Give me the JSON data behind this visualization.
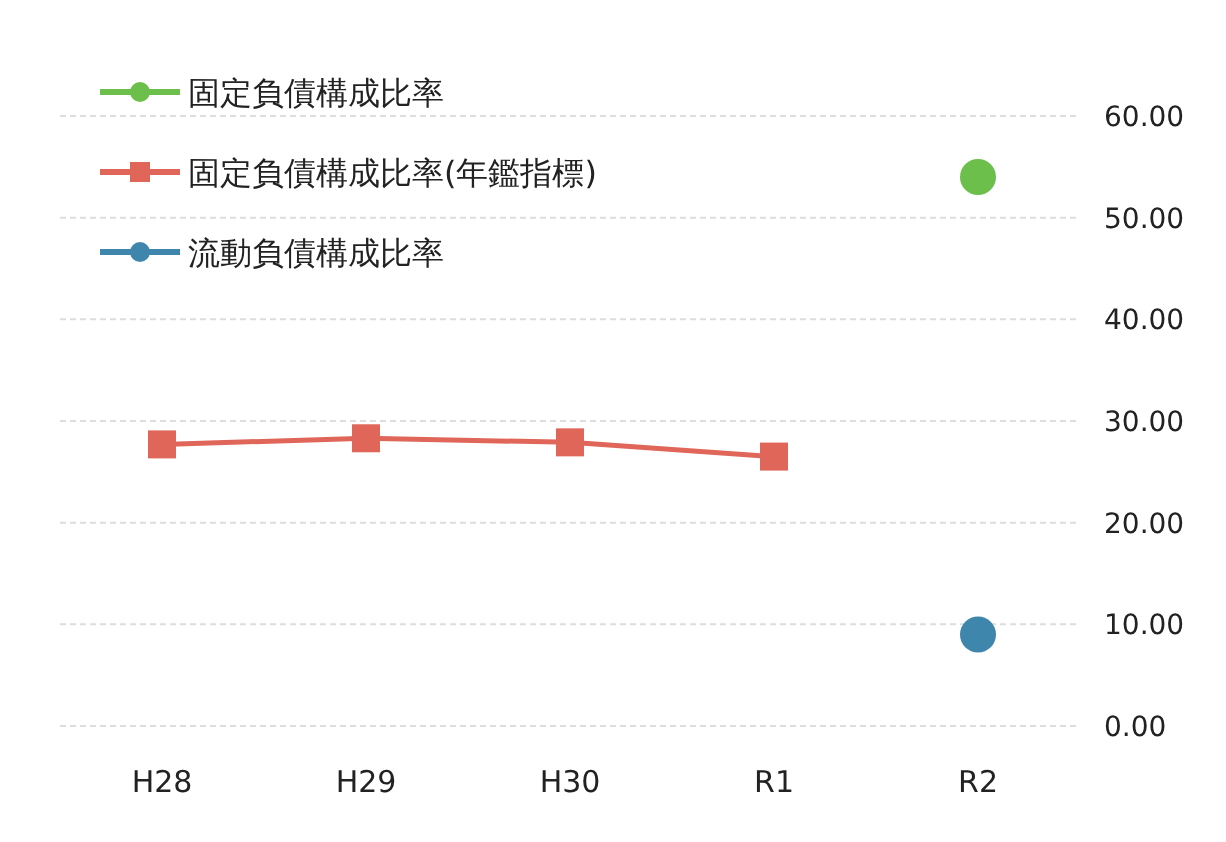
{
  "chart_data": {
    "type": "line",
    "categories": [
      "H28",
      "H29",
      "H30",
      "R1",
      "R2"
    ],
    "series": [
      {
        "name": "固定負債構成比率",
        "color": "#6cbf4a",
        "marker": "circle",
        "values": [
          null,
          null,
          null,
          null,
          54
        ]
      },
      {
        "name": "固定負債構成比率(年鑑指標)",
        "color": "#e0665a",
        "marker": "square",
        "values": [
          27.7,
          28.3,
          27.9,
          26.5,
          null
        ]
      },
      {
        "name": "流動負債構成比率",
        "color": "#3f86ad",
        "marker": "circle",
        "values": [
          null,
          null,
          null,
          null,
          9
        ]
      }
    ],
    "ylim": [
      0,
      60
    ],
    "yticks": [
      {
        "value": 0,
        "label": "0.00"
      },
      {
        "value": 10,
        "label": "10.00"
      },
      {
        "value": 20,
        "label": "20.00"
      },
      {
        "value": 30,
        "label": "30.00"
      },
      {
        "value": 40,
        "label": "40.00"
      },
      {
        "value": 50,
        "label": "50.00"
      },
      {
        "value": 60,
        "label": "60.00"
      }
    ],
    "grid": "y",
    "legend": "top left",
    "line_style": "solid"
  }
}
